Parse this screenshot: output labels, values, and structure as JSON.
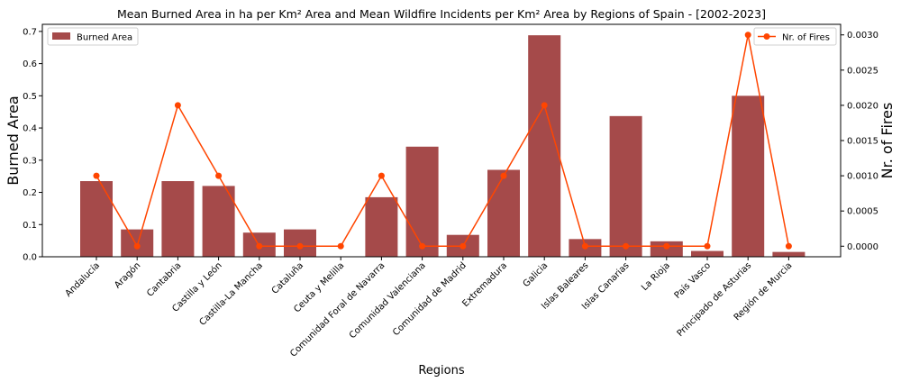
{
  "chart_data": {
    "type": "bar",
    "title": "Mean Burned Area in ha per Km² Area and Mean Wildfire Incidents per Km² Area by Regions of Spain - [2002-2023]",
    "xlabel": "Regions",
    "ylabel": "Burned Area",
    "y2label": "Nr. of Fires",
    "categories": [
      "Andalucía",
      "Aragón",
      "Cantabria",
      "Castilla y León",
      "Castilla-La Mancha",
      "Cataluña",
      "Ceuta y Melilla",
      "Comunidad Foral de Navarra",
      "Comunidad Valenciana",
      "Comunidad de Madrid",
      "Extremadura",
      "Galicia",
      "Islas Baleares",
      "Islas Canarias",
      "La Rioja",
      "País Vasco",
      "Principado de Asturias",
      "Región de Murcia"
    ],
    "series": [
      {
        "name": "Burned Area",
        "axis": "left",
        "kind": "bar",
        "color": "#a54a4a",
        "values": [
          0.235,
          0.085,
          0.235,
          0.22,
          0.075,
          0.085,
          0.0,
          0.185,
          0.342,
          0.068,
          0.27,
          0.688,
          0.055,
          0.437,
          0.048,
          0.018,
          0.5,
          0.015
        ]
      },
      {
        "name": "Nr. of Fires",
        "axis": "right",
        "kind": "line",
        "color": "#ff4500",
        "values": [
          0.001,
          0.0,
          0.002,
          0.001,
          0.0,
          0.0,
          0.0,
          0.001,
          0.0,
          0.0,
          0.001,
          0.002,
          0.0,
          0.0,
          0.0,
          0.0,
          0.003,
          0.0
        ]
      }
    ],
    "ylim": [
      0,
      0.722
    ],
    "y2lim": [
      -0.00015,
      0.00315
    ],
    "yticks": [
      "0.0",
      "0.1",
      "0.2",
      "0.3",
      "0.4",
      "0.5",
      "0.6",
      "0.7"
    ],
    "ytick_values": [
      0,
      0.1,
      0.2,
      0.3,
      0.4,
      0.5,
      0.6,
      0.7
    ],
    "y2ticks": [
      "0.0000",
      "0.0005",
      "0.0010",
      "0.0015",
      "0.0020",
      "0.0025",
      "0.0030"
    ],
    "y2tick_values": [
      0,
      0.0005,
      0.001,
      0.0015,
      0.002,
      0.0025,
      0.003
    ],
    "legend_left": "top-left",
    "legend_right": "top-right",
    "grid": false
  }
}
